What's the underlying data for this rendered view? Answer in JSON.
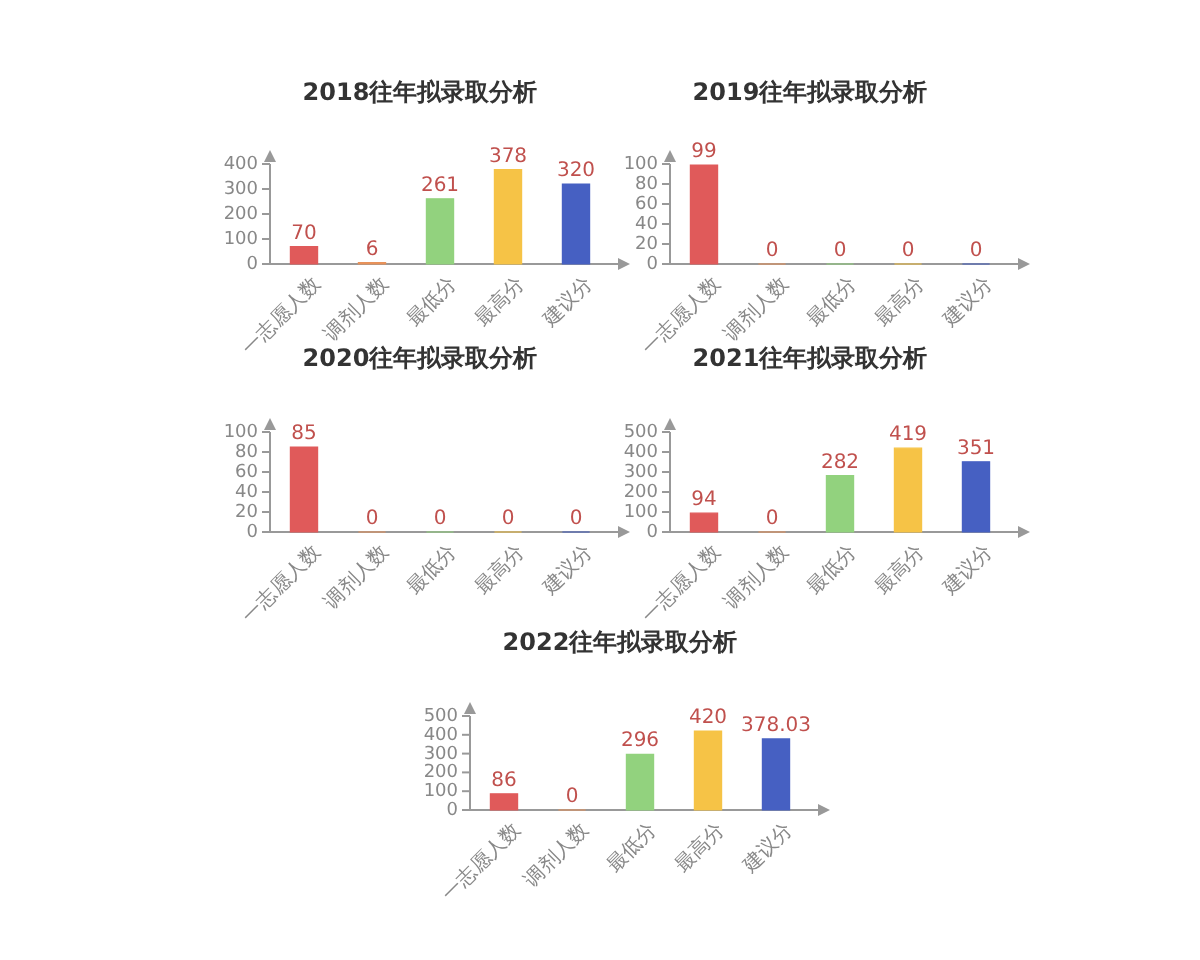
{
  "chart_data": [
    {
      "type": "bar",
      "title": "2018往年拟录取分析",
      "categories": [
        "一志愿人数",
        "调剂人数",
        "最低分",
        "最高分",
        "建议分"
      ],
      "values": [
        70,
        6,
        261,
        378,
        320
      ],
      "colors": [
        "#e05a5a",
        "#e8925a",
        "#92d27e",
        "#f6c346",
        "#4660c2"
      ],
      "ylim": [
        0,
        400
      ],
      "yticks": [
        0,
        100,
        200,
        300,
        400
      ],
      "data_labels": true
    },
    {
      "type": "bar",
      "title": "2019往年拟录取分析",
      "categories": [
        "一志愿人数",
        "调剂人数",
        "最低分",
        "最高分",
        "建议分"
      ],
      "values": [
        99,
        0,
        0,
        0,
        0
      ],
      "colors": [
        "#e05a5a",
        "#e8925a",
        "#92d27e",
        "#f6c346",
        "#4660c2"
      ],
      "ylim": [
        0,
        100
      ],
      "yticks": [
        0,
        20,
        40,
        60,
        80,
        100
      ],
      "data_labels": true
    },
    {
      "type": "bar",
      "title": "2020往年拟录取分析",
      "categories": [
        "一志愿人数",
        "调剂人数",
        "最低分",
        "最高分",
        "建议分"
      ],
      "values": [
        85,
        0,
        0,
        0,
        0
      ],
      "colors": [
        "#e05a5a",
        "#e8925a",
        "#92d27e",
        "#f6c346",
        "#4660c2"
      ],
      "ylim": [
        0,
        100
      ],
      "yticks": [
        0,
        20,
        40,
        60,
        80,
        100
      ],
      "data_labels": true
    },
    {
      "type": "bar",
      "title": "2021往年拟录取分析",
      "categories": [
        "一志愿人数",
        "调剂人数",
        "最低分",
        "最高分",
        "建议分"
      ],
      "values": [
        94,
        0,
        282,
        419,
        351
      ],
      "colors": [
        "#e05a5a",
        "#e8925a",
        "#92d27e",
        "#f6c346",
        "#4660c2"
      ],
      "ylim": [
        0,
        500
      ],
      "yticks": [
        0,
        100,
        200,
        300,
        400,
        500
      ],
      "data_labels": true
    },
    {
      "type": "bar",
      "title": "2022往年拟录取分析",
      "categories": [
        "一志愿人数",
        "调剂人数",
        "最低分",
        "最高分",
        "建议分"
      ],
      "values": [
        86,
        0,
        296,
        420,
        378.03
      ],
      "colors": [
        "#e05a5a",
        "#e8925a",
        "#92d27e",
        "#f6c346",
        "#4660c2"
      ],
      "ylim": [
        0,
        500
      ],
      "yticks": [
        0,
        100,
        200,
        300,
        400,
        500
      ],
      "data_labels": true
    }
  ]
}
